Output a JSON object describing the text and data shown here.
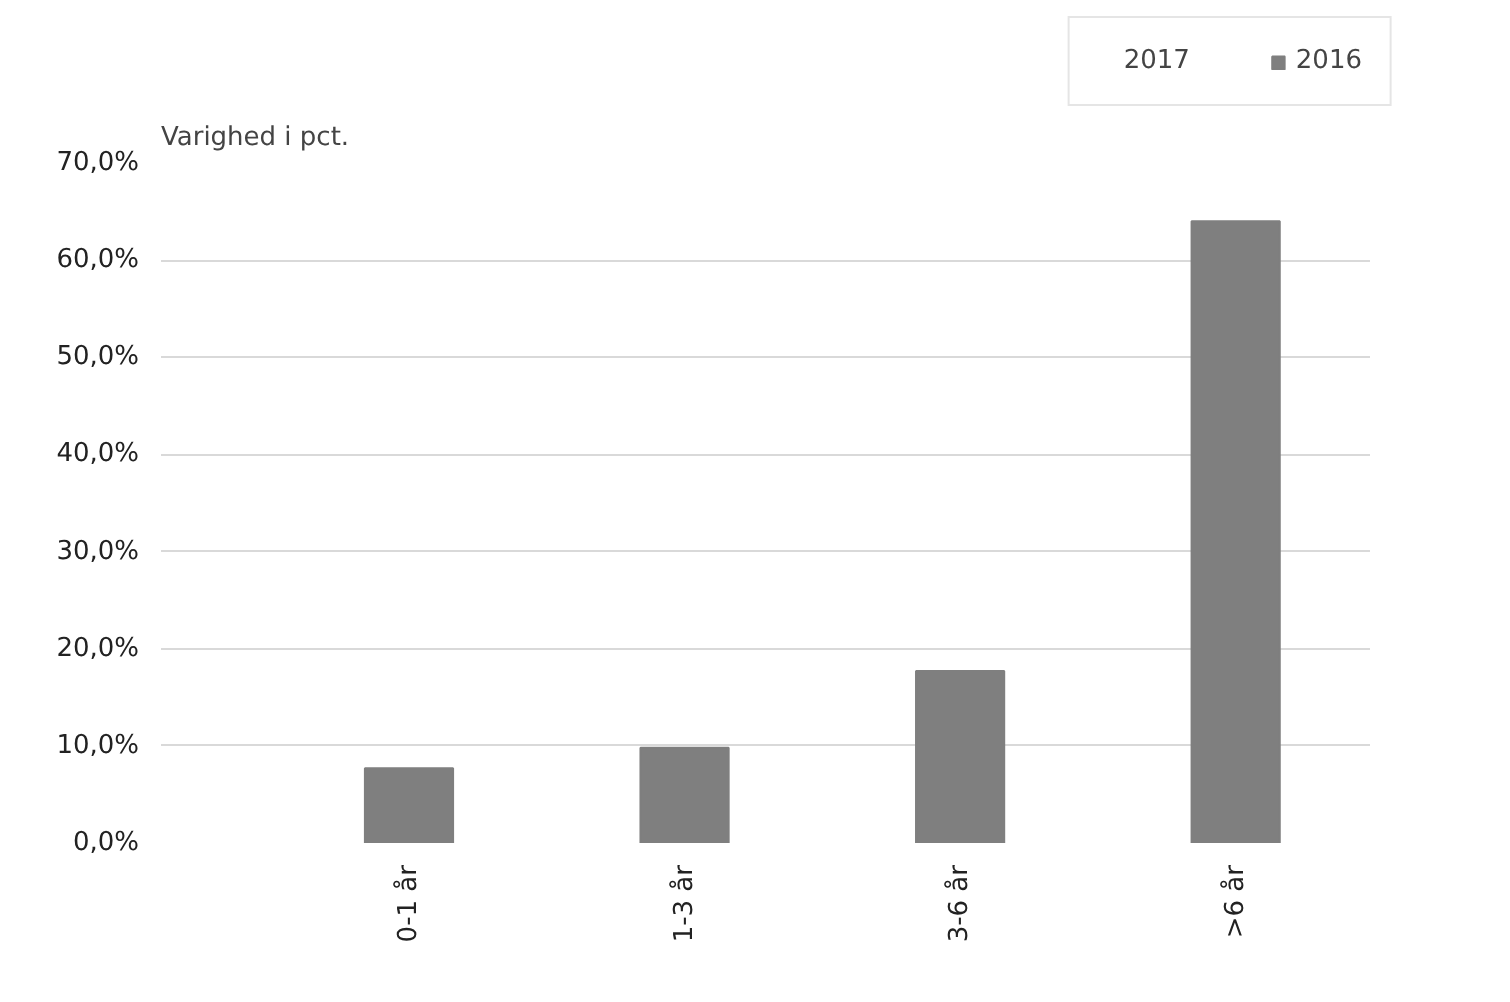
{
  "chart_data": {
    "type": "bar",
    "ylabel": "Varighed i pct.",
    "categories": [
      "0-1 år",
      "1-3 år",
      "3-6 år",
      ">6 år"
    ],
    "series": [
      {
        "name": "2017",
        "values": [
          null,
          null,
          null,
          null
        ]
      },
      {
        "name": "2016",
        "color": "#7f7f7f",
        "values": [
          7.7,
          9.8,
          17.7,
          64.0
        ]
      }
    ],
    "ylim": [
      0,
      70
    ],
    "yticks": [
      {
        "value": 0,
        "label": "0,0%"
      },
      {
        "value": 10,
        "label": "10,0%"
      },
      {
        "value": 20,
        "label": "20,0%"
      },
      {
        "value": 30,
        "label": "30,0%"
      },
      {
        "value": 40,
        "label": "40,0%"
      },
      {
        "value": 50,
        "label": "50,0%"
      },
      {
        "value": 60,
        "label": "60,0%"
      },
      {
        "value": 70,
        "label": "70,0%"
      }
    ],
    "grid": "y",
    "legend": "top right"
  }
}
